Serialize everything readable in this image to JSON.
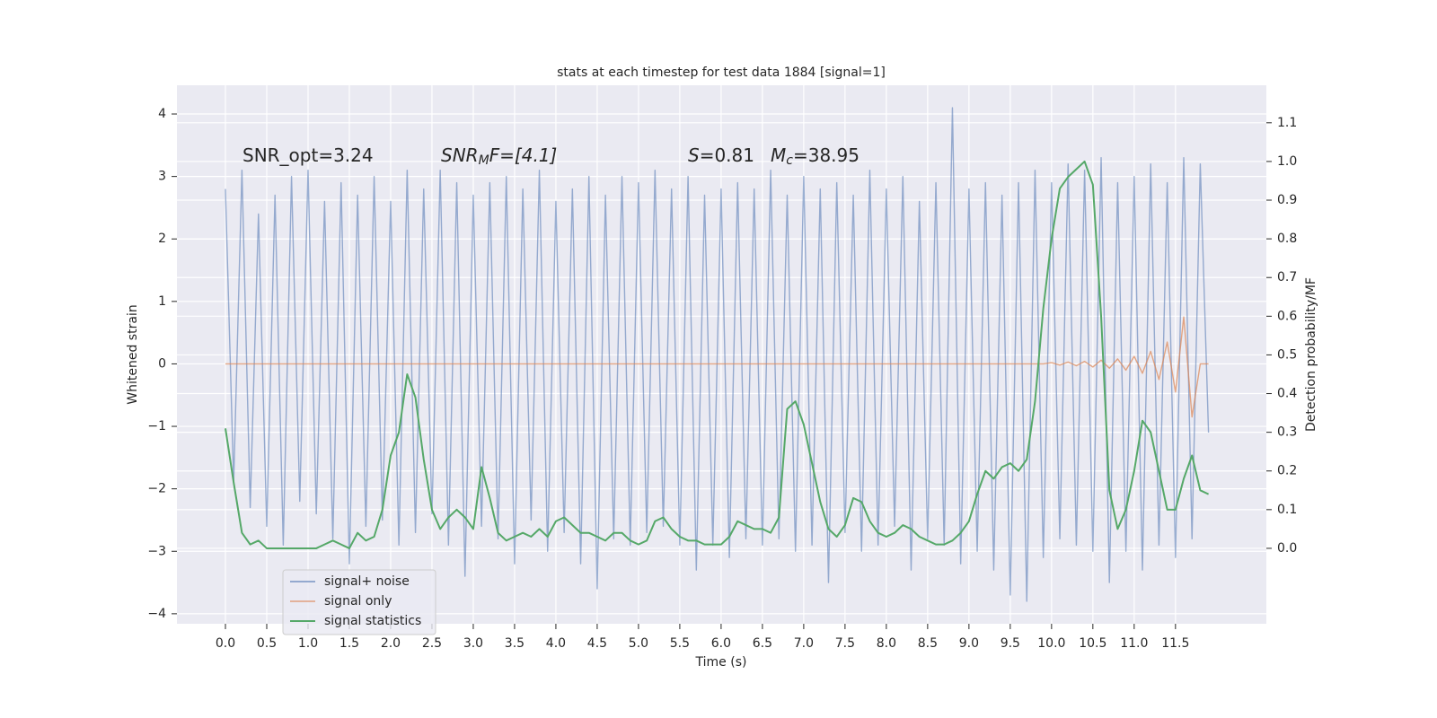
{
  "chart_data": {
    "type": "line",
    "title": "stats at each timestep for test data 1884 [signal=1]",
    "xlabel": "Time (s)",
    "ylabel": "Whitened strain",
    "y2label": "Detection probability/MF",
    "xlim": [
      -0.587,
      12.6
    ],
    "ylim": [
      -4.16,
      4.46
    ],
    "y2lim": [
      -0.195,
      1.197
    ],
    "xticks": [
      {
        "value": 0,
        "label": "0.0"
      },
      0.5,
      {
        "value": 1,
        "label": "1.0"
      },
      1.5,
      {
        "value": 2,
        "label": "2.0"
      },
      2.5,
      {
        "value": 3,
        "label": "3.0"
      },
      3.5,
      {
        "value": 4,
        "label": "4.0"
      },
      4.5,
      {
        "value": 5,
        "label": "5.0"
      },
      5.5,
      {
        "value": 6,
        "label": "6.0"
      },
      6.5,
      {
        "value": 7,
        "label": "7.0"
      },
      7.5,
      {
        "value": 8,
        "label": "8.0"
      },
      8.5,
      {
        "value": 9,
        "label": "9.0"
      },
      9.5,
      {
        "value": 10,
        "label": "10.0"
      },
      10.5,
      {
        "value": 11,
        "label": "11.0"
      },
      11.5
    ],
    "yticks": [
      {
        "value": -4,
        "label": "−4"
      },
      {
        "value": -3,
        "label": "−3"
      },
      {
        "value": -2,
        "label": "−2"
      },
      {
        "value": -1,
        "label": "−1"
      },
      0,
      1,
      2,
      3,
      4
    ],
    "y2ticks": [
      {
        "value": 0,
        "label": "0.0"
      },
      0.1,
      0.2,
      0.3,
      0.4,
      0.5,
      0.6,
      0.7,
      0.8,
      0.9,
      {
        "value": 1,
        "label": "1.0"
      },
      1.1
    ],
    "grid": true,
    "legend": "lower left",
    "x": [
      0.0,
      0.1,
      0.2,
      0.3,
      0.4,
      0.5,
      0.6,
      0.7,
      0.8,
      0.9,
      1.0,
      1.1,
      1.2,
      1.3,
      1.4,
      1.5,
      1.6,
      1.7,
      1.8,
      1.9,
      2.0,
      2.1,
      2.2,
      2.3,
      2.4,
      2.5,
      2.6,
      2.7,
      2.8,
      2.9,
      3.0,
      3.1,
      3.2,
      3.3,
      3.4,
      3.5,
      3.6,
      3.7,
      3.8,
      3.9,
      4.0,
      4.1,
      4.2,
      4.3,
      4.4,
      4.5,
      4.6,
      4.7,
      4.8,
      4.9,
      5.0,
      5.1,
      5.2,
      5.3,
      5.4,
      5.5,
      5.6,
      5.7,
      5.8,
      5.9,
      6.0,
      6.1,
      6.2,
      6.3,
      6.4,
      6.5,
      6.6,
      6.7,
      6.8,
      6.9,
      7.0,
      7.1,
      7.2,
      7.3,
      7.4,
      7.5,
      7.6,
      7.7,
      7.8,
      7.9,
      8.0,
      8.1,
      8.2,
      8.3,
      8.4,
      8.5,
      8.6,
      8.7,
      8.8,
      8.9,
      9.0,
      9.1,
      9.2,
      9.3,
      9.4,
      9.5,
      9.6,
      9.7,
      9.8,
      9.9,
      10.0,
      10.1,
      10.2,
      10.3,
      10.4,
      10.5,
      10.6,
      10.7,
      10.8,
      10.9,
      11.0,
      11.1,
      11.2,
      11.3,
      11.4,
      11.5,
      11.6,
      11.7,
      11.8,
      11.9
    ],
    "series": [
      {
        "name": "signal+ noise",
        "color": "#4c72b0",
        "values": [
          2.8,
          -1.9,
          3.1,
          -2.3,
          2.4,
          -2.6,
          2.7,
          -2.9,
          3.0,
          -2.2,
          3.1,
          -2.4,
          2.6,
          -2.8,
          2.9,
          -3.2,
          2.7,
          -2.6,
          3.0,
          -2.5,
          2.6,
          -2.9,
          3.1,
          -2.7,
          2.8,
          -2.4,
          3.1,
          -2.9,
          2.9,
          -3.4,
          2.7,
          -2.6,
          2.9,
          -2.8,
          3.0,
          -3.2,
          2.8,
          -2.5,
          3.1,
          -3.0,
          2.6,
          -2.7,
          2.8,
          -3.2,
          3.0,
          -3.6,
          2.7,
          -2.8,
          3.0,
          -2.9,
          2.9,
          -2.7,
          3.1,
          -2.6,
          2.8,
          -2.9,
          3.0,
          -3.3,
          2.7,
          -2.9,
          2.8,
          -3.1,
          2.9,
          -2.8,
          2.8,
          -2.9,
          3.1,
          -2.8,
          2.7,
          -3.0,
          3.0,
          -2.9,
          2.8,
          -3.5,
          2.9,
          -2.7,
          2.7,
          -3.0,
          3.1,
          -2.9,
          2.8,
          -2.6,
          3.0,
          -3.3,
          2.6,
          -2.8,
          2.9,
          -2.9,
          4.1,
          -3.2,
          2.8,
          -3.0,
          2.9,
          -3.3,
          2.7,
          -3.7,
          2.9,
          -3.8,
          3.1,
          -3.1,
          2.9,
          -2.8,
          3.2,
          -2.9,
          3.1,
          -3.0,
          3.3,
          -3.5,
          2.9,
          -3.0,
          3.0,
          -3.3,
          3.2,
          -2.9,
          2.9,
          -3.1,
          3.3,
          -2.8,
          3.2,
          -1.1
        ]
      },
      {
        "name": "signal only",
        "color": "#dd8452",
        "values": [
          0,
          0,
          0,
          0,
          0,
          0,
          0,
          0,
          0,
          0,
          0,
          0,
          0,
          0,
          0,
          0,
          0,
          0,
          0,
          0,
          0,
          0,
          0,
          0,
          0,
          0,
          0,
          0,
          0,
          0,
          0,
          0,
          0,
          0,
          0,
          0,
          0,
          0,
          0,
          0,
          0,
          0,
          0,
          0,
          0,
          0,
          0,
          0,
          0,
          0,
          0,
          0,
          0,
          0,
          0,
          0,
          0,
          0,
          0,
          0,
          0,
          0,
          0,
          0,
          0,
          0,
          0,
          0,
          0,
          0,
          0,
          0,
          0,
          0,
          0,
          0,
          0,
          0,
          0,
          0,
          0,
          0,
          0,
          0,
          0,
          0,
          0,
          0,
          0,
          0,
          0,
          0,
          0,
          0,
          0,
          0,
          0,
          0,
          0,
          0,
          0.02,
          -0.02,
          0.03,
          -0.03,
          0.04,
          -0.05,
          0.06,
          -0.07,
          0.08,
          -0.1,
          0.12,
          -0.15,
          0.2,
          -0.25,
          0.35,
          -0.45,
          0.75,
          -0.85,
          0,
          0
        ]
      },
      {
        "name": "signal statistics",
        "color": "#55a868",
        "axis": "y2",
        "values": [
          0.31,
          0.17,
          0.04,
          0.01,
          0.02,
          0.0,
          0.0,
          0.0,
          0.0,
          0.0,
          0.0,
          0.0,
          0.01,
          0.02,
          0.01,
          0.0,
          0.04,
          0.02,
          0.03,
          0.1,
          0.24,
          0.3,
          0.45,
          0.39,
          0.23,
          0.1,
          0.05,
          0.08,
          0.1,
          0.08,
          0.05,
          0.21,
          0.13,
          0.04,
          0.02,
          0.03,
          0.04,
          0.03,
          0.05,
          0.03,
          0.07,
          0.08,
          0.06,
          0.04,
          0.04,
          0.03,
          0.02,
          0.04,
          0.04,
          0.02,
          0.01,
          0.02,
          0.07,
          0.08,
          0.05,
          0.03,
          0.02,
          0.02,
          0.01,
          0.01,
          0.01,
          0.03,
          0.07,
          0.06,
          0.05,
          0.05,
          0.04,
          0.08,
          0.36,
          0.38,
          0.32,
          0.22,
          0.12,
          0.05,
          0.03,
          0.06,
          0.13,
          0.12,
          0.07,
          0.04,
          0.03,
          0.04,
          0.06,
          0.05,
          0.03,
          0.02,
          0.01,
          0.01,
          0.02,
          0.04,
          0.07,
          0.14,
          0.2,
          0.18,
          0.21,
          0.22,
          0.2,
          0.23,
          0.38,
          0.62,
          0.8,
          0.93,
          0.96,
          0.98,
          1.0,
          0.94,
          0.6,
          0.15,
          0.05,
          0.1,
          0.2,
          0.33,
          0.3,
          0.2,
          0.1,
          0.1,
          0.18,
          0.24,
          0.15,
          0.14
        ]
      }
    ],
    "annotations": [
      {
        "parts": [
          "SNR_opt=3.24"
        ]
      },
      {
        "parts": [
          "SNR",
          "M",
          "F=[4.1]"
        ]
      },
      {
        "parts": [
          "S",
          "=0.81"
        ]
      },
      {
        "parts": [
          "M",
          "c",
          "=38.95"
        ]
      }
    ]
  }
}
